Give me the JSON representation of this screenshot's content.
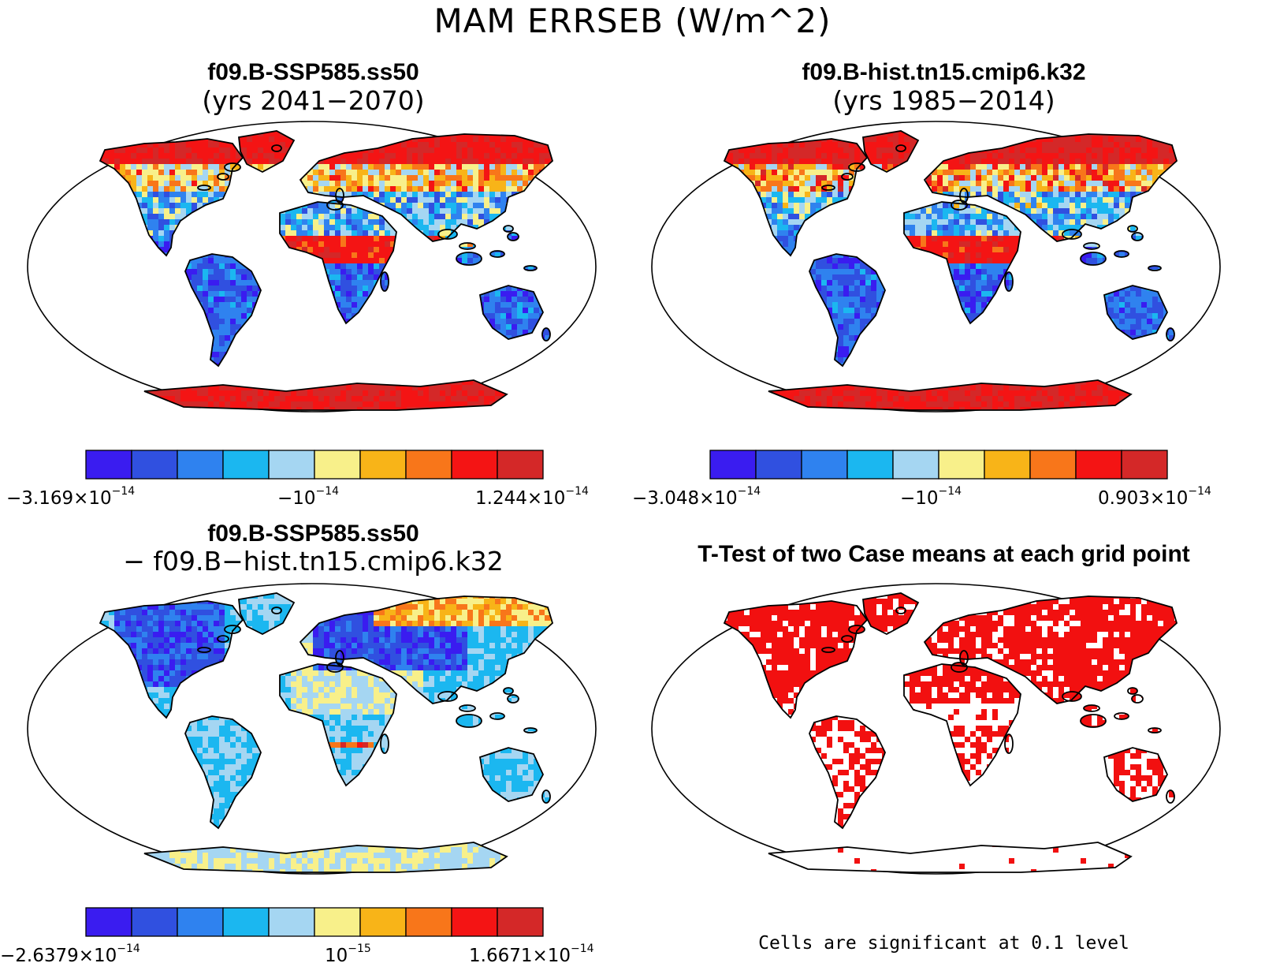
{
  "main_title": "MAM ERRSEB (W/m^2)",
  "colors": {
    "scale": [
      "#3a1cf0",
      "#3050e0",
      "#2f82ef",
      "#1bb7f0",
      "#a5d6f2",
      "#f8f08a",
      "#f8b418",
      "#f8761a",
      "#f41414",
      "#d42828"
    ],
    "land_outline": "#000000",
    "ttest_fill": "#f21010",
    "ocean": "#ffffff"
  },
  "panels": [
    {
      "id": "panel-ssp585",
      "title": "f09.B-SSP585.ss50",
      "subtitle": "(yrs 2041−2070)",
      "colorbar": {
        "min_label": "−3.169×10",
        "min_exp": "−14",
        "mid_label": "−10",
        "mid_exp": "−14",
        "max_label": "1.244×10",
        "max_exp": "−14"
      },
      "land_pattern": "mean_field"
    },
    {
      "id": "panel-hist",
      "title": "f09.B-hist.tn15.cmip6.k32",
      "subtitle": "(yrs 1985−2014)",
      "colorbar": {
        "min_label": "−3.048×10",
        "min_exp": "−14",
        "mid_label": "−10",
        "mid_exp": "−14",
        "max_label": "0.903×10",
        "max_exp": "−14"
      },
      "land_pattern": "mean_field"
    },
    {
      "id": "panel-diff",
      "title": "f09.B-SSP585.ss50",
      "subtitle": "− f09.B−hist.tn15.cmip6.k32",
      "colorbar": {
        "min_label": "−2.6379×10",
        "min_exp": "−14",
        "mid_label": "10",
        "mid_exp": "−15",
        "max_label": "1.6671×10",
        "max_exp": "−14"
      },
      "land_pattern": "difference_field"
    },
    {
      "id": "panel-ttest",
      "title": "T-Test of two Case means at each grid point",
      "note": "Cells are significant at 0.1 level",
      "land_pattern": "significance"
    }
  ]
}
